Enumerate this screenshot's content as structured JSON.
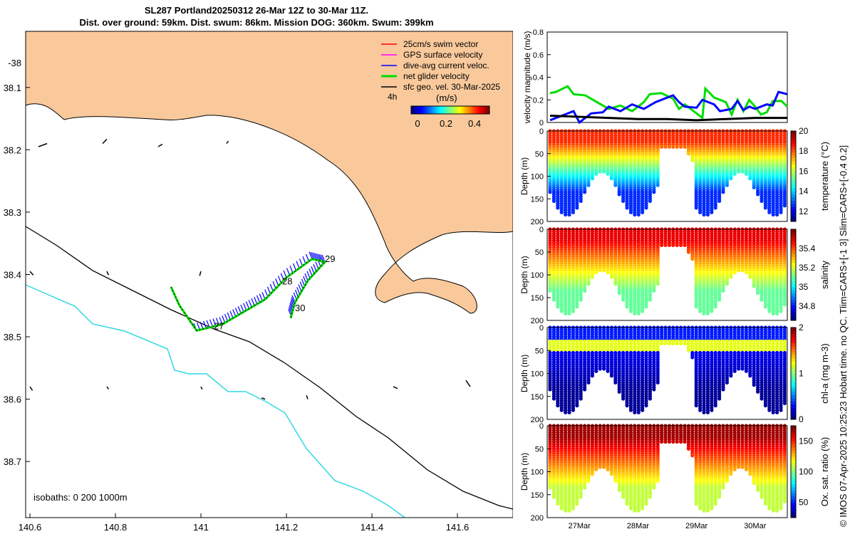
{
  "title": {
    "line1": "SL287 Portland20250312 26-Mar 12Z to 30-Mar 11Z.",
    "line2": "Dist. over ground: 59km. Dist. swum: 86km. Mission DOG: 360km. Swum: 399km"
  },
  "credit": "© IMOS 07-Apr-2025 10:25:23 Hobart time. no QC. Tlim=CARS+[-1 3] Slim=CARS+[-0.4 0.2]",
  "colors": {
    "land": "#f9c99c",
    "swim": "#ff0000",
    "gps": "#ff00ff",
    "current": "#0000ff",
    "net": "#00dd00",
    "geo": "#000000",
    "coast_200": "#30d8e0",
    "coast_1000": "#000000"
  },
  "chart_data": [
    {
      "type": "scatter",
      "name": "map",
      "xlim": [
        140.59,
        141.73
      ],
      "ylim": [
        -38.79,
        -38.01
      ],
      "xticks": [
        140.6,
        140.8,
        141,
        141.2,
        141.4,
        141.6
      ],
      "xtick_labels": [
        "140.6",
        "140.8",
        "141",
        "141.2",
        "141.4",
        "141.6"
      ],
      "yticks": [
        -38,
        -38.1,
        -38.2,
        -38.3,
        -38.4,
        -38.5,
        -38.6,
        -38.7
      ],
      "ytick_labels": [
        "-38",
        "38.1",
        "38.2",
        "38.3",
        "38.4",
        "38.5",
        "38.6",
        "38.7"
      ],
      "legend": [
        "25cm/s swim vector",
        "GPS surface velocity",
        "dive-avg current veloc.",
        "net glider velocity",
        "sfc geo. vel. 30-Mar-2025"
      ],
      "legend_note": "4h",
      "colorbar_label": "(m/s)",
      "colorbar_ticks": [
        "0",
        "0.2",
        "0.4"
      ],
      "isobath_label": "isobaths: 0   200  1000m",
      "day_labels": [
        {
          "text": "27",
          "lon": 141.03,
          "lat": -38.488
        },
        {
          "text": "28",
          "lon": 141.19,
          "lat": -38.416
        },
        {
          "text": "29",
          "lon": 141.29,
          "lat": -38.38
        },
        {
          "text": "30",
          "lon": 141.22,
          "lat": -38.459
        }
      ],
      "track": [
        [
          140.93,
          -38.42
        ],
        [
          140.95,
          -38.45
        ],
        [
          140.99,
          -38.49
        ],
        [
          141.05,
          -38.48
        ],
        [
          141.1,
          -38.46
        ],
        [
          141.15,
          -38.44
        ],
        [
          141.2,
          -38.405
        ],
        [
          141.26,
          -38.375
        ],
        [
          141.29,
          -38.38
        ],
        [
          141.25,
          -38.41
        ],
        [
          141.22,
          -38.445
        ],
        [
          141.21,
          -38.47
        ]
      ],
      "geo_vectors": [
        [
          140.62,
          -38.195,
          0.02,
          0.005
        ],
        [
          140.77,
          -38.19,
          0.01,
          0.007
        ],
        [
          140.9,
          -38.195,
          0.01,
          0.004
        ],
        [
          141.06,
          -38.19,
          0.004,
          0.004
        ],
        [
          140.6,
          -38.395,
          0.008,
          -0.006
        ],
        [
          140.78,
          -38.395,
          0.004,
          -0.006
        ],
        [
          141.0,
          -38.395,
          -0.003,
          -0.007
        ],
        [
          140.6,
          -38.58,
          0.006,
          -0.006
        ],
        [
          140.78,
          -38.58,
          0.004,
          -0.004
        ],
        [
          141.0,
          -38.58,
          0.003,
          -0.004
        ],
        [
          141.15,
          -38.6,
          -0.008,
          0.002
        ],
        [
          141.25,
          -38.6,
          -0.003,
          0.006
        ],
        [
          141.45,
          -38.58,
          0.01,
          -0.003
        ],
        [
          141.62,
          -38.57,
          0.01,
          -0.01
        ]
      ]
    },
    {
      "type": "line",
      "name": "velocity",
      "ylabel": "velocity magnitude (m/s)",
      "xlim": [
        26.45,
        30.55
      ],
      "ylim": [
        0,
        0.8
      ],
      "yticks": [
        0,
        0.2,
        0.4,
        0.6,
        0.8
      ],
      "ytick_labels": [
        "0",
        "0.2",
        "0.4",
        "0.6",
        "0.8"
      ],
      "series": [
        {
          "color": "#00dd00",
          "x": [
            26.5,
            26.6,
            26.8,
            26.9,
            27.1,
            27.3,
            27.5,
            27.7,
            27.9,
            28.1,
            28.2,
            28.4,
            28.6,
            28.7,
            28.8,
            29.0,
            29.1,
            29.15,
            29.3,
            29.5,
            29.6,
            29.7,
            29.8,
            29.9,
            30.0,
            30.1,
            30.2,
            30.3,
            30.45,
            30.55
          ],
          "y": [
            0.26,
            0.27,
            0.32,
            0.25,
            0.24,
            0.18,
            0.12,
            0.15,
            0.1,
            0.18,
            0.25,
            0.26,
            0.21,
            0.12,
            0.16,
            0.08,
            0.04,
            0.3,
            0.22,
            0.18,
            0.07,
            0.2,
            0.1,
            0.2,
            0.14,
            0.07,
            0.09,
            0.19,
            0.19,
            0.14
          ]
        },
        {
          "color": "#0000ff",
          "x": [
            26.5,
            26.7,
            26.9,
            27.0,
            27.2,
            27.4,
            27.5,
            27.7,
            27.9,
            28.1,
            28.3,
            28.5,
            28.6,
            28.7,
            28.8,
            29.0,
            29.1,
            29.3,
            29.4,
            29.6,
            29.7,
            29.8,
            29.9,
            30.0,
            30.2,
            30.3,
            30.4,
            30.55
          ],
          "y": [
            0.02,
            0.06,
            0.1,
            0.0,
            0.08,
            0.09,
            0.14,
            0.1,
            0.16,
            0.12,
            0.18,
            0.22,
            0.24,
            0.18,
            0.14,
            0.13,
            0.2,
            0.16,
            0.1,
            0.12,
            0.19,
            0.11,
            0.14,
            0.12,
            0.16,
            0.15,
            0.27,
            0.25
          ]
        },
        {
          "color": "#000000",
          "x": [
            26.5,
            27.0,
            27.5,
            28.0,
            28.5,
            29.0,
            29.5,
            30.0,
            30.55
          ],
          "y": [
            0.06,
            0.05,
            0.04,
            0.03,
            0.03,
            0.02,
            0.03,
            0.04,
            0.04
          ]
        }
      ]
    },
    {
      "type": "scatter",
      "name": "temperature",
      "ylabel": "Depth (m)",
      "colorbar_label": "temperature (°C)",
      "clim": [
        11,
        20
      ],
      "cticks": [
        "12",
        "14",
        "16",
        "18",
        "20"
      ],
      "cmap": "jet",
      "top": 18.5,
      "bottom": 12.5
    },
    {
      "type": "scatter",
      "name": "salinity",
      "ylabel": "Depth (m)",
      "colorbar_label": "salinity",
      "clim": [
        34.65,
        35.6
      ],
      "cticks": [
        "34.8",
        "35",
        "35.2",
        "35.4"
      ],
      "cmap": "jet",
      "top": 35.5,
      "bottom": 35.1
    },
    {
      "type": "scatter",
      "name": "chl-a",
      "ylabel": "Depth (m)",
      "colorbar_label": "chl-a (mg m-3)",
      "clim": [
        0,
        2
      ],
      "cticks": [
        "0",
        "1",
        "2"
      ],
      "cmap": "jet",
      "top": 0.3,
      "bottom": 0.05
    },
    {
      "type": "scatter",
      "name": "oxygen",
      "ylabel": "Depth (m)",
      "colorbar_label": "Ox. sat. ratio (%)",
      "clim": [
        25,
        175
      ],
      "cticks": [
        "50",
        "100",
        "150"
      ],
      "cmap": "jet",
      "top": 170,
      "bottom": 110
    }
  ],
  "shared": {
    "depth_ticks": [
      "0",
      "50",
      "100",
      "150",
      "200"
    ],
    "time_ticks": [
      "27Mar",
      "28Mar",
      "29Mar",
      "30Mar"
    ]
  }
}
